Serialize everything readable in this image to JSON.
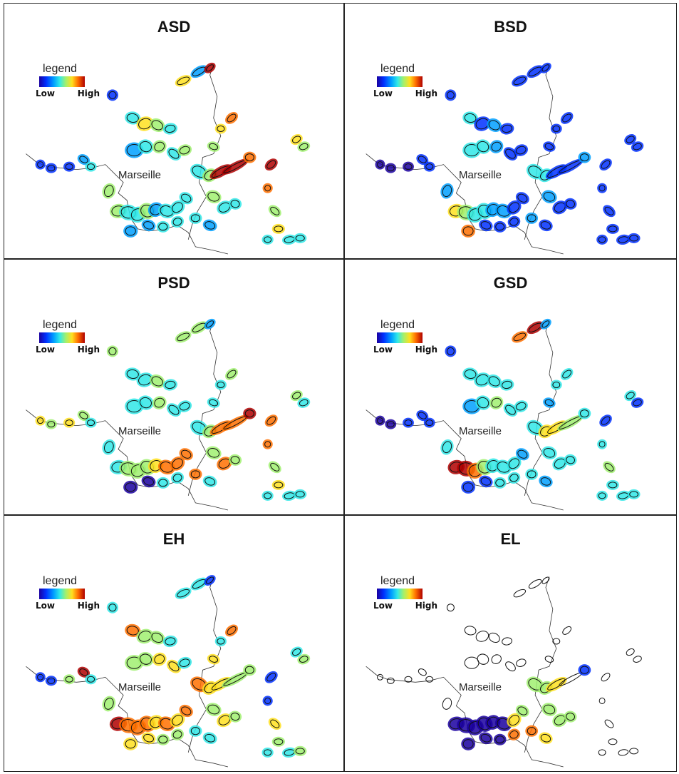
{
  "panels": [
    {
      "title": "ASD",
      "palette": "asd"
    },
    {
      "title": "BSD",
      "palette": "bsd"
    },
    {
      "title": "PSD",
      "palette": "psd"
    },
    {
      "title": "GSD",
      "palette": "gsd"
    },
    {
      "title": "EH",
      "palette": "eh"
    },
    {
      "title": "EL",
      "palette": "el"
    }
  ],
  "legend": {
    "title": "legend",
    "low": "Low",
    "high": "High"
  },
  "city_label": "Marseille",
  "colors": {
    "low": "#1a00a0",
    "mid_low": "#00a0ff",
    "mid": "#30e8e8",
    "mid_high": "#a0f070",
    "high_mid": "#ffe020",
    "high": "#b00000"
  }
}
